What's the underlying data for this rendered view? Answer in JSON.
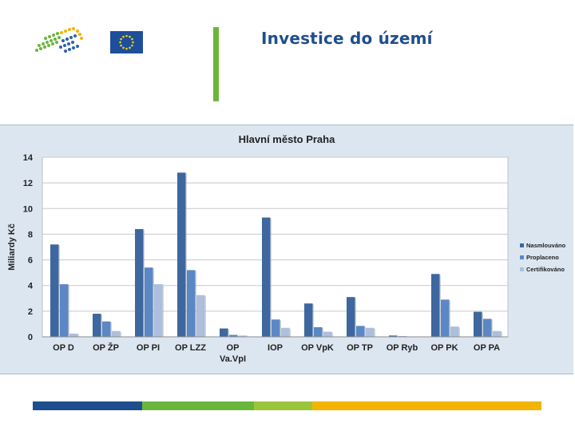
{
  "slide": {
    "title": "Investice do území"
  },
  "colors": {
    "green_bar": "#6ab63d",
    "title": "#1f4e8c",
    "panel": "#dce6f1",
    "footer": [
      "#1f4e8c",
      "#6ab63d",
      "#9cc63a",
      "#f2b400"
    ]
  },
  "icons": {
    "left_logo": "dotted-wave-logo",
    "right_logo": "eu-flag"
  },
  "chart_data": {
    "type": "bar",
    "title": "Hlavní město Praha",
    "ylabel": "Miliardy Kč",
    "xlabel": "",
    "ylim": [
      0,
      14
    ],
    "yticks": [
      0,
      2,
      4,
      6,
      8,
      10,
      12,
      14
    ],
    "grid": true,
    "legend_position": "right",
    "categories": [
      "OP D",
      "OP ŽP",
      "OP PI",
      "OP LZZ",
      "OP Va.VpI",
      "IOP",
      "OP VpK",
      "OP TP",
      "OP Ryb",
      "OP PK",
      "OP PA"
    ],
    "category_lines": [
      [
        "OP D"
      ],
      [
        "OP ŽP"
      ],
      [
        "OP PI"
      ],
      [
        "OP LZZ"
      ],
      [
        "OP",
        "Va.VpI"
      ],
      [
        "IOP"
      ],
      [
        "OP VpK"
      ],
      [
        "OP TP"
      ],
      [
        "OP Ryb"
      ],
      [
        "OP PK"
      ],
      [
        "OP PA"
      ]
    ],
    "series": [
      {
        "name": "Nasmlouváno",
        "color": "#3d679e",
        "values": [
          7.2,
          1.8,
          8.4,
          12.8,
          0.65,
          9.3,
          2.6,
          3.1,
          0.1,
          4.9,
          1.95
        ]
      },
      {
        "name": "Proplaceno",
        "color": "#5b87c5",
        "values": [
          4.1,
          1.2,
          5.4,
          5.2,
          0.15,
          1.35,
          0.75,
          0.85,
          0.05,
          2.9,
          1.4
        ]
      },
      {
        "name": "Certifikováno",
        "color": "#aebedd",
        "values": [
          0.25,
          0.45,
          4.1,
          3.25,
          0.1,
          0.7,
          0.4,
          0.7,
          0.0,
          0.8,
          0.45
        ]
      }
    ]
  }
}
